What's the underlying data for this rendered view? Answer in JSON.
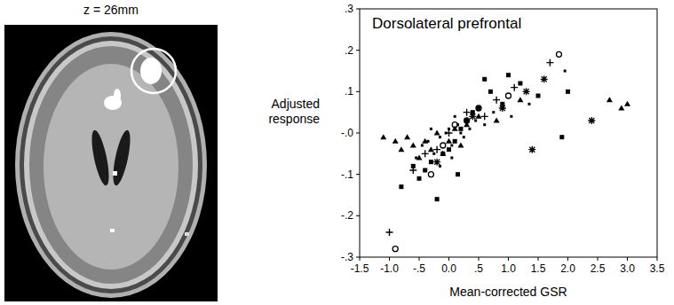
{
  "image": {
    "label": "z = 26mm"
  },
  "chart_data": {
    "type": "scatter",
    "title": "Dorsolateral prefrontal",
    "x_label": "Mean-corrected GSR",
    "y_label": "Adjusted response",
    "xlim": [
      -1.5,
      3.5
    ],
    "ylim": [
      -0.3,
      0.3
    ],
    "xticks": [
      -1.5,
      {
        "value": -1.0,
        "label": "-1.0"
      },
      {
        "value": -0.5,
        "label": "-.5"
      },
      {
        "value": 0.0,
        "label": "0.0"
      },
      {
        "value": 0.5,
        "label": ".5"
      },
      {
        "value": 1.0,
        "label": "1.0"
      },
      1.5,
      {
        "value": 2.0,
        "label": "2.0"
      },
      2.5,
      {
        "value": 3.0,
        "label": "3.0"
      },
      3.5
    ],
    "yticks": [
      {
        "value": -0.3,
        "label": "-.3"
      },
      {
        "value": -0.2,
        "label": "-.2"
      },
      {
        "value": -0.1,
        "label": "-.1"
      },
      {
        "value": 0.0,
        "label": "-.0"
      },
      {
        "value": 0.1,
        "label": ".1"
      },
      {
        "value": 0.2,
        "label": ".2"
      },
      {
        "value": 0.3,
        "label": ".3"
      }
    ],
    "grid": false,
    "series": [
      {
        "marker": "triangle",
        "color": "#000000",
        "x": [
          -1.1,
          -0.9,
          -0.7,
          -0.6,
          -0.4,
          -0.3,
          -0.2,
          -0.1,
          0.0,
          0.1,
          0.2,
          0.3,
          0.5,
          0.8,
          1.2,
          2.7,
          2.9,
          3.0,
          -0.5,
          -0.8
        ],
        "values": [
          -0.01,
          -0.02,
          -0.01,
          -0.03,
          -0.02,
          -0.04,
          0.0,
          -0.05,
          -0.02,
          0.01,
          -0.03,
          0.02,
          0.04,
          0.03,
          0.08,
          0.08,
          0.06,
          0.07,
          -0.06,
          -0.04
        ]
      },
      {
        "marker": "square",
        "color": "#000000",
        "x": [
          -0.8,
          -0.5,
          -0.4,
          -0.3,
          -0.2,
          -0.1,
          0.0,
          0.1,
          0.2,
          0.3,
          0.5,
          0.7,
          0.9,
          1.0,
          1.2,
          1.5,
          1.9,
          2.0,
          -0.6,
          0.4,
          0.6,
          0.15
        ],
        "values": [
          -0.13,
          -0.11,
          -0.09,
          -0.07,
          -0.16,
          -0.05,
          -0.04,
          -0.02,
          0.01,
          0.03,
          0.06,
          0.1,
          0.07,
          0.14,
          0.12,
          0.09,
          -0.01,
          0.1,
          -0.08,
          0.05,
          0.13,
          -0.1
        ]
      },
      {
        "marker": "plus",
        "color": "#000000",
        "x": [
          -1.0,
          -0.6,
          -0.2,
          0.0,
          0.3,
          0.8,
          1.7,
          -0.4,
          0.6,
          1.1
        ],
        "values": [
          -0.24,
          -0.09,
          -0.04,
          0.0,
          0.05,
          0.08,
          0.17,
          -0.05,
          0.04,
          0.11
        ]
      },
      {
        "marker": "circle",
        "color": "#000000",
        "x": [
          -0.9,
          -0.3,
          0.1,
          0.5,
          1.0,
          1.85,
          0.3,
          -0.1
        ],
        "values": [
          -0.28,
          -0.1,
          0.02,
          0.06,
          0.09,
          0.19,
          0.03,
          -0.03
        ]
      },
      {
        "marker": "asterisk",
        "color": "#000000",
        "x": [
          -0.2,
          0.4,
          1.4,
          1.6,
          2.4,
          0.9,
          1.3
        ],
        "values": [
          -0.07,
          0.04,
          -0.04,
          0.13,
          0.03,
          0.06,
          0.1
        ]
      },
      {
        "marker": "dot",
        "color": "#000000",
        "x": [
          -0.45,
          -0.35,
          -0.25,
          -0.15,
          -0.05,
          0.05,
          0.15,
          0.25,
          0.35,
          0.45,
          0.6,
          0.75,
          1.05,
          1.35,
          1.95,
          -0.55,
          -0.15,
          0.05,
          0.2,
          0.1,
          -0.3,
          0.0
        ],
        "values": [
          -0.03,
          -0.02,
          -0.05,
          -0.01,
          0.0,
          -0.03,
          0.02,
          -0.01,
          0.01,
          0.03,
          0.02,
          0.05,
          0.04,
          0.07,
          0.15,
          -0.06,
          -0.08,
          -0.06,
          0.0,
          0.04,
          0.01,
          0.01
        ]
      }
    ]
  }
}
